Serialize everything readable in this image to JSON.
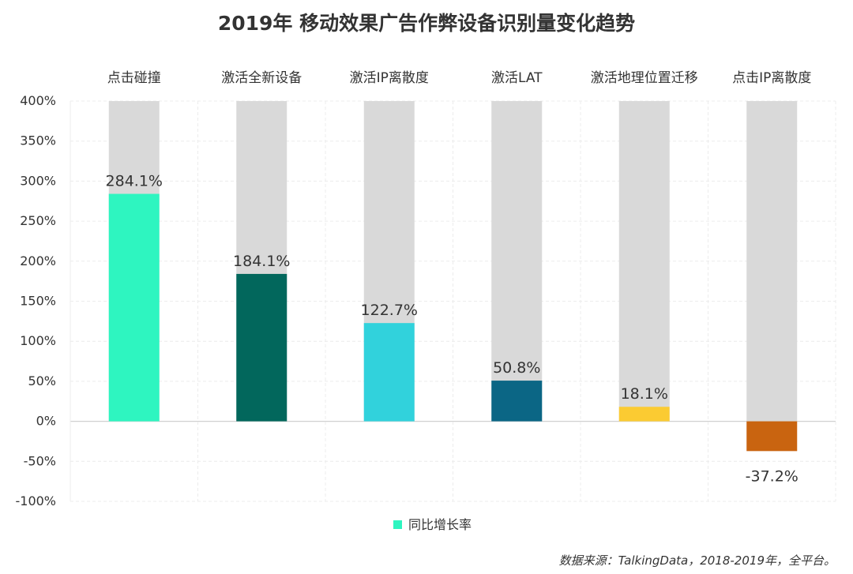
{
  "chart_data": {
    "type": "bar",
    "title": "2019年  移动效果广告作弊设备识别量变化趋势",
    "categories": [
      "点击碰撞",
      "激活全新设备",
      "激活IP离散度",
      "激活LAT",
      "激活地理位置迁移",
      "点击IP离散度"
    ],
    "series": [
      {
        "name": "同比增长率",
        "values": [
          284.1,
          184.1,
          122.7,
          50.8,
          18.1,
          -37.2
        ],
        "value_labels": [
          "284.1%",
          "184.1%",
          "122.7%",
          "50.8%",
          "18.1%",
          "-37.2%"
        ]
      }
    ],
    "bar_colors": [
      "#2ef5c0",
      "#02675c",
      "#31d2dc",
      "#0b6685",
      "#fbcb32",
      "#c96410"
    ],
    "background_bar_color": "#d9d9d9",
    "background_bar_range": [
      0,
      400
    ],
    "ylim": [
      -100,
      400
    ],
    "yticks": [
      400,
      350,
      300,
      250,
      200,
      150,
      100,
      50,
      0,
      -50,
      -100
    ],
    "ytick_labels": [
      "400%",
      "350%",
      "300%",
      "250%",
      "200%",
      "150%",
      "100%",
      "50%",
      "0%",
      "-50%",
      "-100%"
    ],
    "xlabel": "",
    "ylabel": "",
    "grid": true,
    "category_axis_position": "top",
    "legend": {
      "position": "bottom-center",
      "label": "同比增长率",
      "color": "#2ef5c0"
    },
    "source": "数据来源：TalkingData，2018-2019年，全平台。"
  }
}
